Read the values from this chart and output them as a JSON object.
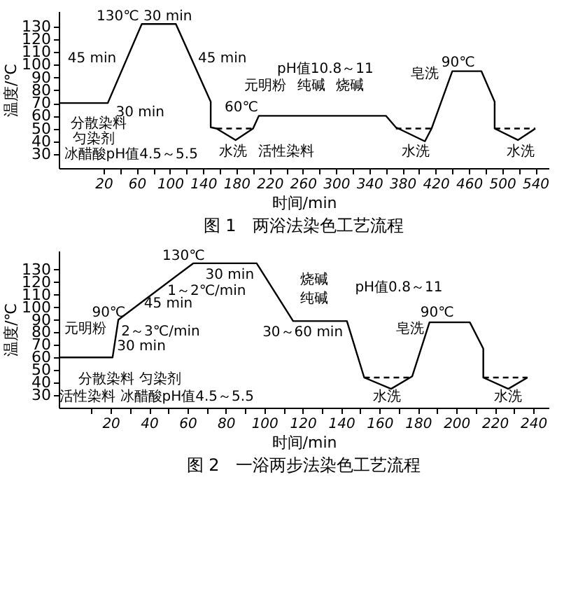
{
  "chart_data": [
    {
      "type": "line",
      "title": "图 1　两浴法染色工艺流程",
      "xlabel": "时间/min",
      "ylabel": "温度/℃",
      "grid": false,
      "legend": false,
      "marker": "none",
      "xlim": [
        -34,
        556
      ],
      "ylim": [
        19,
        142
      ],
      "xticks": [
        20,
        {
          "value": 40,
          "label": null
        },
        60,
        {
          "value": 80,
          "label": null
        },
        100,
        {
          "value": 120,
          "label": null
        },
        140,
        {
          "value": 160,
          "label": null
        },
        180,
        {
          "value": 200,
          "label": null
        },
        220,
        {
          "value": 240,
          "label": null
        },
        260,
        {
          "value": 280,
          "label": null
        },
        300,
        {
          "value": 320,
          "label": null
        },
        340,
        {
          "value": 360,
          "label": null
        },
        380,
        {
          "value": 400,
          "label": null
        },
        420,
        {
          "value": 440,
          "label": null
        },
        460,
        {
          "value": 480,
          "label": null
        },
        500,
        {
          "value": 520,
          "label": null
        },
        540
      ],
      "yticks": [
        30,
        40,
        50,
        60,
        70,
        80,
        90,
        100,
        110,
        120,
        130
      ],
      "series": [
        {
          "color": "#000000",
          "line_style": "solid",
          "x": [
            -34,
            25,
            66,
            107,
            149,
            149,
            156,
            179,
            200,
            207,
            360,
            372,
            407,
            415,
            440,
            475,
            491,
            491,
            519,
            540
          ],
          "values": [
            70,
            70,
            132,
            132,
            71,
            51,
            50,
            41,
            50,
            60,
            60,
            51,
            40,
            50,
            95,
            95,
            71,
            50,
            41,
            50
          ]
        },
        {
          "color": "#000000",
          "line_style": "dashed",
          "x": [
            156,
            200
          ],
          "values": [
            50,
            50
          ]
        },
        {
          "color": "#000000",
          "line_style": "dashed",
          "x": [
            372,
            415
          ],
          "values": [
            50,
            50
          ]
        },
        {
          "color": "#000000",
          "line_style": "dashed",
          "x": [
            491,
            540
          ],
          "values": [
            50,
            50
          ]
        }
      ],
      "annotations": [
        "130℃ 30 min",
        "45 min",
        "45 min",
        "30 min",
        "分散染料",
        "匀染剂",
        "冰醋酸pH值4.5～5.5",
        "60℃",
        "水洗",
        "活性染料",
        "元明粉",
        "纯碱",
        "烧碱",
        "pH值10.8～11",
        "90℃",
        "皂洗",
        "水洗",
        "水洗"
      ]
    },
    {
      "type": "line",
      "title": "图 2　一浴两步法染色工艺流程",
      "xlabel": "时间/min",
      "ylabel": "温度/℃",
      "grid": false,
      "legend": false,
      "marker": "none",
      "xlim": [
        -7,
        248
      ],
      "ylim": [
        20,
        145
      ],
      "xticks": [
        {
          "value": 10,
          "label": null
        },
        20,
        {
          "value": 30,
          "label": null
        },
        40,
        {
          "value": 50,
          "label": null
        },
        60,
        {
          "value": 70,
          "label": null
        },
        80,
        {
          "value": 90,
          "label": null
        },
        100,
        {
          "value": 110,
          "label": null
        },
        120,
        {
          "value": 130,
          "label": null
        },
        140,
        {
          "value": 150,
          "label": null
        },
        160,
        {
          "value": 170,
          "label": null
        },
        180,
        {
          "value": 190,
          "label": null
        },
        200,
        {
          "value": 210,
          "label": null
        },
        220,
        {
          "value": 230,
          "label": null
        },
        240
      ],
      "yticks": [
        30,
        40,
        50,
        60,
        70,
        80,
        90,
        100,
        110,
        120,
        130
      ],
      "series": [
        {
          "color": "#000000",
          "line_style": "solid",
          "x": [
            -7,
            21,
            24,
            63,
            96,
            115,
            143,
            152,
            166,
            177,
            186,
            207,
            214,
            214,
            227,
            237
          ],
          "values": [
            60,
            60,
            90,
            135,
            135,
            89,
            89,
            44,
            35,
            45,
            88,
            88,
            67,
            44,
            35,
            44
          ]
        },
        {
          "color": "#000000",
          "line_style": "dashed",
          "x": [
            152,
            177
          ],
          "values": [
            44,
            44
          ]
        },
        {
          "color": "#000000",
          "line_style": "dashed",
          "x": [
            214,
            237
          ],
          "values": [
            44,
            44
          ]
        }
      ],
      "annotations": [
        "130℃",
        "30 min",
        "1～2℃/min",
        "45 min",
        "90℃",
        "2～3℃/min",
        "30 min",
        "元明粉",
        "烧碱",
        "纯碱",
        "pH值0.8～11",
        "30～60 min",
        "90℃",
        "皂洗",
        "分散染料  匀染剂",
        "活性染料  冰醋酸pH值4.5～5.5",
        "水洗",
        "水洗"
      ]
    }
  ]
}
